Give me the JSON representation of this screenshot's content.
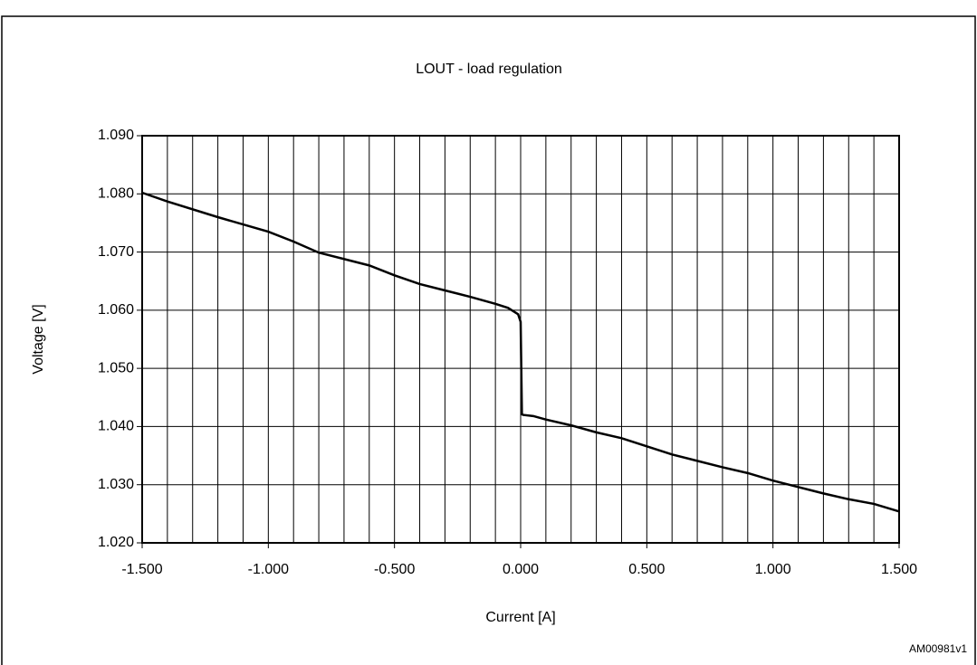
{
  "chart_data": {
    "type": "line",
    "title": "LOUT - load regulation",
    "x_label": "Current [A]",
    "y_label": "Voltage [V]",
    "annotation": "AM00981v1",
    "color": "#000000",
    "grid": true,
    "x": [
      -1.5,
      -1.4,
      -1.2,
      -1.0,
      -0.9,
      -0.8,
      -0.6,
      -0.5,
      -0.4,
      -0.3,
      -0.2,
      -0.1,
      -0.05,
      -0.01,
      0.0,
      0.005,
      0.01,
      0.05,
      0.1,
      0.2,
      0.3,
      0.4,
      0.5,
      0.6,
      0.7,
      0.8,
      0.9,
      1.0,
      1.1,
      1.2,
      1.3,
      1.4,
      1.5
    ],
    "values": [
      1.0802,
      1.0787,
      1.076,
      1.0735,
      1.0718,
      1.0699,
      1.0677,
      1.066,
      1.0645,
      1.0634,
      1.0623,
      1.0611,
      1.0604,
      1.0593,
      1.058,
      1.0421,
      1.042,
      1.0418,
      1.0412,
      1.0402,
      1.039,
      1.038,
      1.0366,
      1.0352,
      1.0341,
      1.033,
      1.032,
      1.0307,
      1.0296,
      1.0285,
      1.0275,
      1.0267,
      1.0254
    ],
    "xlim": [
      -1.5,
      1.5
    ],
    "ylim": [
      1.02,
      1.09
    ],
    "xticks": [
      {
        "value": -1.5,
        "label": "-1.500"
      },
      {
        "value": -1.0,
        "label": "-1.000"
      },
      {
        "value": -0.5,
        "label": "-0.500"
      },
      {
        "value": 0,
        "label": "0.000"
      },
      {
        "value": 0.5,
        "label": "0.500"
      },
      {
        "value": 1.0,
        "label": "1.000"
      },
      {
        "value": 1.5,
        "label": "1.500"
      }
    ],
    "xgrid": [
      -1.5,
      -1.4,
      -1.3,
      -1.2,
      -1.1,
      -1.0,
      -0.9,
      -0.8,
      -0.7,
      -0.6,
      -0.5,
      -0.4,
      -0.3,
      -0.2,
      -0.1,
      0,
      0.1,
      0.2,
      0.3,
      0.4,
      0.5,
      0.6,
      0.7,
      0.8,
      0.9,
      1.0,
      1.1,
      1.2,
      1.3,
      1.4,
      1.5
    ],
    "yticks": [
      {
        "value": 1.02,
        "label": "1.020"
      },
      {
        "value": 1.03,
        "label": "1.030"
      },
      {
        "value": 1.04,
        "label": "1.040"
      },
      {
        "value": 1.05,
        "label": "1.050"
      },
      {
        "value": 1.06,
        "label": "1.060"
      },
      {
        "value": 1.07,
        "label": "1.070"
      },
      {
        "value": 1.08,
        "label": "1.080"
      },
      {
        "value": 1.09,
        "label": "1.090"
      }
    ]
  }
}
